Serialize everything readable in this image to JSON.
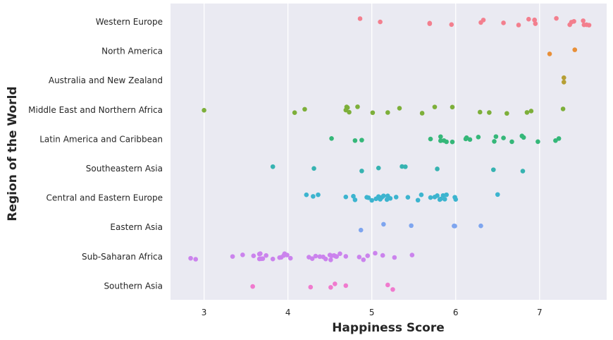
{
  "chart_data": {
    "type": "scatter",
    "title": "",
    "xlabel": "Happiness Score",
    "ylabel": "Region of the World",
    "xlim": [
      2.6,
      7.8
    ],
    "x_ticks": [
      3,
      4,
      5,
      6,
      7
    ],
    "grid": true,
    "background": "#EAEAF2",
    "categories": [
      "Western Europe",
      "North America",
      "Australia and New Zealand",
      "Middle East and Northern Africa",
      "Latin America and Caribbean",
      "Southeastern Asia",
      "Central and Eastern Europe",
      "Eastern Asia",
      "Sub-Saharan Africa",
      "Southern Asia"
    ],
    "colors": [
      "#F37F8E",
      "#E88F38",
      "#B69F35",
      "#7DAF3A",
      "#35B779",
      "#36B3B1",
      "#3CB4CF",
      "#7EA5EF",
      "#CB83ED",
      "#F07ACE"
    ],
    "series": [
      {
        "values": [
          4.86,
          5.1,
          5.69,
          5.69,
          5.95,
          6.3,
          6.33,
          6.57,
          6.75,
          6.87,
          6.94,
          6.94,
          6.95,
          7.2,
          7.36,
          7.38,
          7.41,
          7.52,
          7.53,
          7.56,
          7.59
        ]
      },
      {
        "values": [
          7.12,
          7.42
        ]
      },
      {
        "values": [
          7.29,
          7.29
        ]
      },
      {
        "values": [
          3.0,
          4.08,
          4.2,
          4.69,
          4.7,
          4.71,
          4.73,
          4.83,
          5.01,
          5.19,
          5.33,
          5.6,
          5.75,
          5.96,
          6.29,
          6.4,
          6.61,
          6.85,
          6.9,
          7.28
        ]
      },
      {
        "values": [
          4.52,
          4.8,
          4.88,
          5.7,
          5.82,
          5.82,
          5.86,
          5.89,
          5.96,
          6.12,
          6.13,
          6.17,
          6.27,
          6.46,
          6.48,
          6.57,
          6.67,
          6.79,
          6.81,
          6.98,
          7.19,
          7.23
        ]
      },
      {
        "values": [
          3.82,
          4.31,
          4.88,
          5.08,
          5.36,
          5.4,
          5.78,
          6.45,
          6.8
        ]
      },
      {
        "values": [
          4.22,
          4.3,
          4.36,
          4.69,
          4.78,
          4.8,
          4.94,
          4.96,
          5.0,
          5.05,
          5.08,
          5.1,
          5.12,
          5.14,
          5.18,
          5.19,
          5.22,
          5.29,
          5.43,
          5.55,
          5.59,
          5.7,
          5.75,
          5.78,
          5.81,
          5.82,
          5.85,
          5.87,
          5.89,
          5.99,
          6.0,
          6.5
        ]
      },
      {
        "values": [
          4.87,
          5.14,
          5.47,
          5.98,
          5.99,
          6.3
        ]
      },
      {
        "values": [
          2.84,
          2.9,
          3.34,
          3.46,
          3.59,
          3.66,
          3.66,
          3.67,
          3.68,
          3.7,
          3.74,
          3.82,
          3.9,
          3.92,
          3.95,
          3.96,
          3.99,
          4.03,
          4.25,
          4.29,
          4.33,
          4.38,
          4.42,
          4.45,
          4.5,
          4.51,
          4.52,
          4.55,
          4.57,
          4.58,
          4.62,
          4.69,
          4.85,
          4.9,
          4.95,
          5.04,
          5.13,
          5.27,
          5.48
        ]
      },
      {
        "values": [
          3.58,
          4.27,
          4.51,
          4.56,
          4.69,
          5.19,
          5.25
        ]
      }
    ]
  }
}
